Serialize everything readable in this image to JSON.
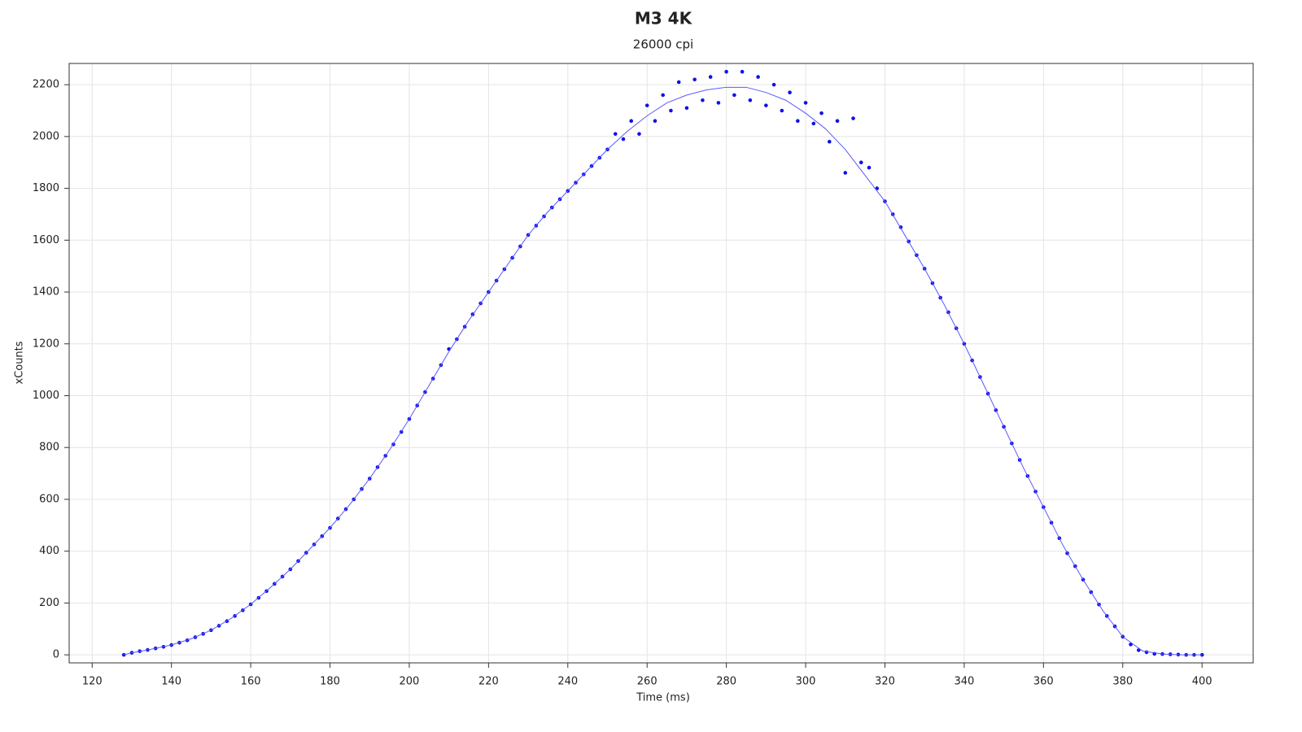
{
  "chart_data": {
    "type": "scatter",
    "title": "M3 4K",
    "subtitle": "26000 cpi",
    "x_label": "Time (ms)",
    "y_label": "xCounts",
    "xlim": [
      114.2,
      412.9
    ],
    "ylim": [
      -31,
      2282
    ],
    "xticks": [
      120,
      140,
      160,
      180,
      200,
      220,
      240,
      260,
      280,
      300,
      320,
      340,
      360,
      380,
      400
    ],
    "yticks": [
      0,
      200,
      400,
      600,
      800,
      1000,
      1200,
      1400,
      1600,
      1800,
      2000,
      2200
    ],
    "grid": true,
    "series": [
      {
        "mode": "points",
        "color": "#1010e8",
        "x": [
          128,
          130,
          132,
          134,
          136,
          138,
          140,
          142,
          144,
          146,
          148,
          150,
          152,
          154,
          156,
          158,
          160,
          162,
          164,
          166,
          168,
          170,
          172,
          174,
          176,
          178,
          180,
          182,
          184,
          186,
          188,
          190,
          192,
          194,
          196,
          198,
          200,
          202,
          204,
          206,
          208,
          210,
          212,
          214,
          216,
          218,
          220,
          222,
          224,
          226,
          228,
          230,
          232,
          234,
          236,
          238,
          240,
          242,
          244,
          246,
          248,
          250,
          252,
          254,
          256,
          258,
          260,
          262,
          264,
          266,
          268,
          270,
          272,
          274,
          276,
          278,
          280,
          282,
          284,
          286,
          288,
          290,
          292,
          294,
          296,
          298,
          300,
          302,
          304,
          306,
          308,
          310,
          312,
          314,
          316,
          318,
          320,
          322,
          324,
          326,
          328,
          330,
          332,
          334,
          336,
          338,
          340,
          342,
          344,
          346,
          348,
          350,
          352,
          354,
          356,
          358,
          360,
          362,
          364,
          366,
          368,
          370,
          372,
          374,
          376,
          378,
          380,
          382,
          384,
          386,
          388,
          390,
          392,
          394,
          396,
          398,
          400
        ],
        "values": [
          0,
          8,
          14,
          19,
          25,
          31,
          38,
          47,
          56,
          68,
          81,
          95,
          112,
          130,
          150,
          172,
          195,
          220,
          246,
          274,
          302,
          330,
          362,
          394,
          426,
          458,
          490,
          526,
          562,
          600,
          640,
          680,
          724,
          768,
          812,
          860,
          910,
          962,
          1014,
          1066,
          1118,
          1180,
          1218,
          1266,
          1314,
          1356,
          1400,
          1444,
          1488,
          1532,
          1576,
          1620,
          1656,
          1692,
          1726,
          1758,
          1790,
          1822,
          1854,
          1886,
          1918,
          1950,
          2010,
          1990,
          2060,
          2010,
          2120,
          2060,
          2160,
          2100,
          2210,
          2110,
          2220,
          2140,
          2230,
          2130,
          2250,
          2160,
          2250,
          2140,
          2230,
          2120,
          2200,
          2100,
          2170,
          2060,
          2130,
          2050,
          2090,
          1980,
          2060,
          1860,
          2070,
          1900,
          1880,
          1800,
          1750,
          1700,
          1650,
          1595,
          1542,
          1490,
          1434,
          1378,
          1322,
          1260,
          1200,
          1136,
          1072,
          1008,
          944,
          880,
          816,
          752,
          690,
          630,
          570,
          510,
          450,
          392,
          342,
          290,
          242,
          194,
          150,
          110,
          70,
          40,
          18,
          10,
          4,
          3,
          2,
          1,
          0,
          0,
          0
        ]
      },
      {
        "mode": "line",
        "color": "#5a5aff",
        "x": [
          128,
          130,
          135,
          140,
          145,
          150,
          155,
          160,
          165,
          170,
          175,
          180,
          185,
          190,
          195,
          200,
          205,
          210,
          215,
          220,
          225,
          230,
          235,
          240,
          245,
          250,
          255,
          260,
          265,
          270,
          275,
          280,
          285,
          290,
          295,
          300,
          305,
          310,
          315,
          320,
          325,
          330,
          335,
          340,
          345,
          350,
          355,
          360,
          365,
          370,
          375,
          380,
          385,
          390,
          395,
          400
        ],
        "values": [
          0,
          8,
          22,
          38,
          62,
          95,
          140,
          195,
          260,
          330,
          410,
          490,
          580,
          680,
          790,
          910,
          1040,
          1170,
          1290,
          1400,
          1510,
          1620,
          1710,
          1790,
          1870,
          1950,
          2020,
          2080,
          2130,
          2160,
          2180,
          2190,
          2190,
          2170,
          2140,
          2090,
          2030,
          1950,
          1850,
          1750,
          1620,
          1490,
          1350,
          1200,
          1040,
          880,
          720,
          570,
          420,
          290,
          170,
          70,
          15,
          3,
          0,
          0
        ]
      }
    ]
  }
}
